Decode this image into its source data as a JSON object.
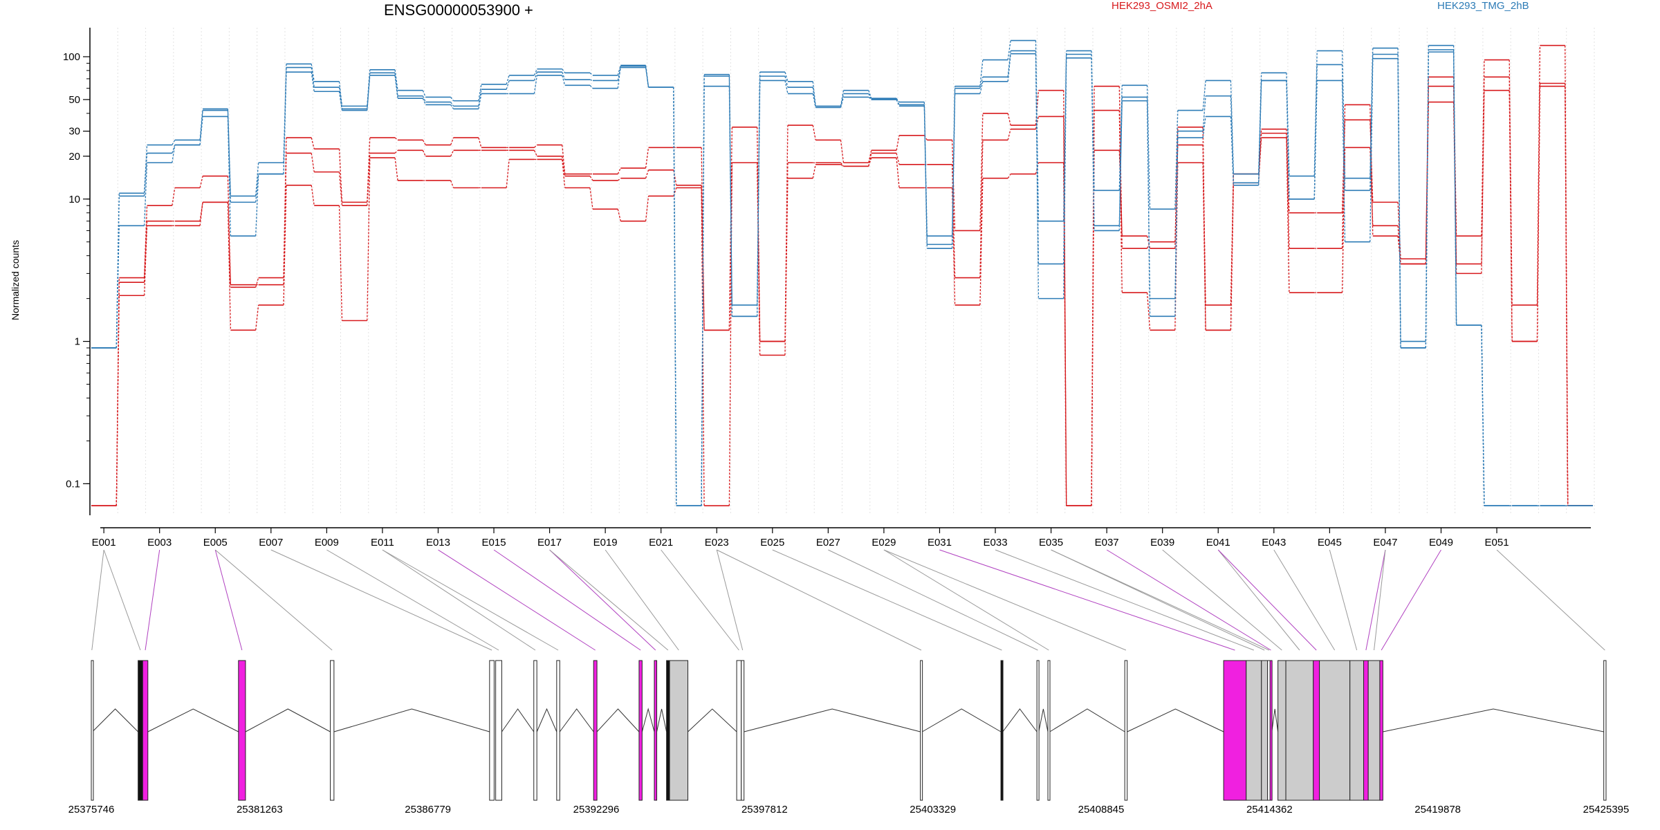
{
  "chart_data": {
    "type": "line",
    "title": "ENSG00000053900 +",
    "ylabel": "Normalized counts",
    "y_scale": "log",
    "y_ticks": [
      "0.1",
      "1",
      "10",
      "20",
      "30",
      "50",
      "100"
    ],
    "exon_labels": [
      "E001",
      "E003",
      "E005",
      "E007",
      "E009",
      "E011",
      "E013",
      "E015",
      "E017",
      "E019",
      "E021",
      "E023",
      "E025",
      "E027",
      "E029",
      "E031",
      "E033",
      "E035",
      "E037",
      "E039",
      "E041",
      "E043",
      "E045",
      "E047",
      "E049",
      "E051"
    ],
    "genomic_ticks": [
      "25375746",
      "25381263",
      "25386779",
      "25392296",
      "25397812",
      "25403329",
      "25408845",
      "25414362",
      "25419878",
      "25425395"
    ],
    "genomic_range": [
      25375746,
      25425395
    ],
    "series": [
      {
        "name": "HEK293_OSMI2_2hA",
        "color": "#d7191c",
        "values": [
          [
            0.07,
            2.1,
            6.5,
            6.5,
            9.5,
            1.2,
            1.8,
            12.5,
            9.0,
            1.4,
            19.5,
            13.5,
            13.5,
            12.0,
            12.0,
            19.0,
            19.0,
            12.0,
            8.5,
            7.0,
            10.5,
            12.0,
            1.2,
            18.0,
            0.8,
            14.0,
            17.5,
            17.0,
            19.5,
            12.0,
            12.0,
            1.8,
            14.0,
            15.0,
            18.0,
            0.07,
            42.0,
            2.2,
            1.2,
            18.0,
            1.2,
            13.0,
            27.0,
            2.2,
            2.2,
            23.0,
            6.5,
            3.5,
            48.0,
            3.0,
            58.0,
            1.0,
            62.0,
            0.07
          ],
          [
            0.07,
            2.6,
            7.0,
            7.0,
            9.5,
            2.5,
            2.5,
            21.0,
            15.5,
            9.0,
            21.0,
            22.0,
            20.0,
            22.0,
            22.0,
            22.0,
            20.0,
            14.5,
            13.5,
            14.0,
            16.0,
            12.5,
            0.07,
            18.0,
            1.0,
            18.0,
            18.0,
            17.0,
            21.0,
            17.5,
            17.5,
            2.8,
            26.0,
            31.0,
            38.0,
            0.07,
            62.0,
            4.5,
            5.0,
            24.0,
            1.8,
            15.0,
            29.0,
            8.0,
            8.0,
            36.0,
            9.5,
            3.8,
            62.0,
            3.5,
            72.0,
            1.0,
            65.0,
            0.07
          ],
          [
            0.07,
            2.8,
            9.0,
            12.0,
            14.5,
            2.4,
            2.8,
            27.0,
            22.5,
            9.5,
            27.0,
            26.0,
            24.0,
            27.0,
            23.0,
            23.0,
            24.0,
            15.0,
            15.0,
            16.5,
            23.0,
            23.0,
            1.2,
            32.0,
            1.0,
            33.0,
            26.0,
            18.0,
            22.0,
            28.0,
            26.0,
            6.0,
            40.0,
            33.0,
            58.0,
            0.07,
            22.0,
            5.5,
            4.5,
            32.0,
            1.2,
            15.0,
            31.0,
            4.5,
            4.5,
            46.0,
            5.5,
            3.5,
            72.0,
            5.5,
            95.0,
            1.8,
            120.0,
            0.07
          ]
        ]
      },
      {
        "name": "HEK293_TMG_2hB",
        "color": "#2c7bb6",
        "values": [
          [
            0.9,
            11.0,
            24.0,
            26.0,
            43.0,
            10.5,
            18.0,
            89.0,
            67.0,
            45.0,
            81.0,
            58.0,
            52.0,
            49.0,
            64.0,
            74.0,
            82.0,
            77.0,
            74.0,
            87.0,
            61.0,
            0.07,
            75.0,
            1.8,
            78.0,
            67.0,
            45.0,
            58.0,
            51.0,
            48.0,
            5.5,
            62.0,
            95.0,
            130.0,
            7.0,
            110.0,
            11.5,
            63.0,
            8.5,
            42.0,
            68.0,
            15.0,
            77.0,
            14.5,
            110.0,
            14.0,
            115.0,
            1.0,
            120.0,
            1.3,
            0.07,
            0.07,
            0.07,
            0.07
          ],
          [
            0.9,
            10.5,
            21.0,
            24.0,
            42.0,
            9.5,
            15.0,
            84.0,
            61.0,
            43.0,
            77.0,
            53.0,
            48.0,
            45.0,
            59.0,
            68.0,
            78.0,
            69.0,
            68.0,
            84.0,
            61.0,
            0.07,
            73.0,
            1.5,
            73.0,
            61.0,
            44.0,
            55.0,
            50.0,
            46.0,
            4.8,
            60.0,
            72.0,
            110.0,
            3.5,
            104.0,
            6.0,
            52.0,
            1.5,
            30.0,
            53.0,
            13.0,
            68.0,
            10.0,
            88.0,
            11.5,
            104.0,
            0.9,
            112.0,
            1.3,
            0.07,
            0.07,
            0.07,
            0.07
          ],
          [
            0.9,
            6.5,
            18.0,
            24.0,
            38.0,
            5.5,
            15.0,
            78.0,
            57.0,
            42.0,
            74.0,
            51.0,
            46.0,
            43.0,
            55.0,
            55.0,
            74.0,
            63.0,
            60.0,
            86.0,
            61.0,
            0.07,
            62.0,
            1.5,
            68.0,
            55.0,
            44.0,
            52.0,
            50.0,
            45.0,
            4.5,
            55.0,
            67.0,
            105.0,
            2.0,
            98.0,
            6.5,
            49.0,
            2.0,
            27.0,
            38.0,
            12.5,
            68.0,
            10.0,
            68.0,
            5.0,
            97.0,
            0.9,
            108.0,
            1.3,
            0.07,
            0.07,
            0.07,
            0.07
          ]
        ]
      }
    ],
    "exons": [
      {
        "start": 25375746,
        "end": 25375782,
        "type": "white"
      },
      {
        "start": 25377280,
        "end": 25377430,
        "type": "black"
      },
      {
        "start": 25377430,
        "end": 25377600,
        "type": "magenta"
      },
      {
        "start": 25380570,
        "end": 25380800,
        "type": "magenta"
      },
      {
        "start": 25383580,
        "end": 25383700,
        "type": "white"
      },
      {
        "start": 25388800,
        "end": 25388950,
        "type": "white"
      },
      {
        "start": 25389000,
        "end": 25389200,
        "type": "white"
      },
      {
        "start": 25390250,
        "end": 25390350,
        "type": "white"
      },
      {
        "start": 25391000,
        "end": 25391100,
        "type": "white"
      },
      {
        "start": 25392210,
        "end": 25392320,
        "type": "magenta"
      },
      {
        "start": 25393700,
        "end": 25393800,
        "type": "magenta"
      },
      {
        "start": 25394200,
        "end": 25394280,
        "type": "magenta"
      },
      {
        "start": 25394600,
        "end": 25394700,
        "type": "black"
      },
      {
        "start": 25394700,
        "end": 25395300,
        "type": "gray"
      },
      {
        "start": 25396900,
        "end": 25397050,
        "type": "white"
      },
      {
        "start": 25397050,
        "end": 25397140,
        "type": "white"
      },
      {
        "start": 25402920,
        "end": 25402980,
        "type": "white"
      },
      {
        "start": 25405560,
        "end": 25405620,
        "type": "black"
      },
      {
        "start": 25406740,
        "end": 25406800,
        "type": "white"
      },
      {
        "start": 25407100,
        "end": 25407160,
        "type": "white"
      },
      {
        "start": 25409620,
        "end": 25409700,
        "type": "white"
      },
      {
        "start": 25412860,
        "end": 25413600,
        "type": "magenta"
      },
      {
        "start": 25413600,
        "end": 25414100,
        "type": "gray"
      },
      {
        "start": 25414100,
        "end": 25414300,
        "type": "gray"
      },
      {
        "start": 25414300,
        "end": 25414400,
        "type": "white"
      },
      {
        "start": 25414380,
        "end": 25414440,
        "type": "magenta"
      },
      {
        "start": 25414640,
        "end": 25414900,
        "type": "gray"
      },
      {
        "start": 25414900,
        "end": 25415800,
        "type": "gray"
      },
      {
        "start": 25415800,
        "end": 25416000,
        "type": "magenta"
      },
      {
        "start": 25416000,
        "end": 25417000,
        "type": "gray"
      },
      {
        "start": 25417000,
        "end": 25417450,
        "type": "gray"
      },
      {
        "start": 25417450,
        "end": 25417600,
        "type": "magenta"
      },
      {
        "start": 25417600,
        "end": 25417980,
        "type": "gray"
      },
      {
        "start": 25417980,
        "end": 25418080,
        "type": "magenta"
      },
      {
        "start": 25425320,
        "end": 25425395,
        "type": "white"
      }
    ]
  }
}
